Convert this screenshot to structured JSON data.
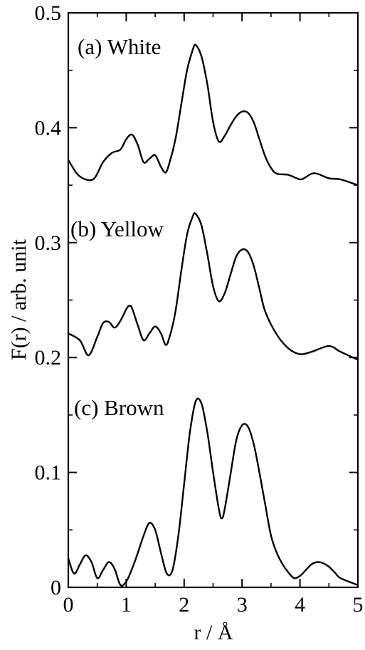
{
  "chart_data": {
    "type": "line",
    "xlabel": "r / Å",
    "ylabel": "F(r) / arb. unit",
    "xlim": [
      0,
      5
    ],
    "ylim": [
      0,
      0.5
    ],
    "x_ticks": [
      "0",
      "1",
      "2",
      "3",
      "4",
      "5"
    ],
    "y_ticks": [
      "0",
      "0.1",
      "0.2",
      "0.3",
      "0.4",
      "0.5"
    ],
    "grid": false,
    "legend": "none",
    "annotations": [
      {
        "text": "(a) White",
        "series": "White"
      },
      {
        "text": "(b) Yellow",
        "series": "Yellow"
      },
      {
        "text": "(c) Brown",
        "series": "Brown"
      }
    ],
    "series": [
      {
        "name": "White",
        "x": [
          0,
          0.15,
          0.3,
          0.45,
          0.6,
          0.75,
          0.9,
          1.0,
          1.1,
          1.2,
          1.3,
          1.4,
          1.5,
          1.6,
          1.68,
          1.75,
          1.85,
          1.95,
          2.05,
          2.15,
          2.2,
          2.3,
          2.4,
          2.5,
          2.6,
          2.7,
          2.8,
          2.9,
          3.0,
          3.1,
          3.2,
          3.3,
          3.4,
          3.5,
          3.6,
          3.8,
          4.0,
          4.1,
          4.2,
          4.3,
          4.5,
          4.7,
          5.0
        ],
        "y": [
          0.372,
          0.36,
          0.355,
          0.356,
          0.37,
          0.378,
          0.381,
          0.39,
          0.394,
          0.385,
          0.37,
          0.373,
          0.376,
          0.366,
          0.361,
          0.37,
          0.39,
          0.42,
          0.45,
          0.468,
          0.472,
          0.462,
          0.438,
          0.405,
          0.388,
          0.393,
          0.402,
          0.41,
          0.414,
          0.413,
          0.405,
          0.39,
          0.375,
          0.365,
          0.36,
          0.359,
          0.355,
          0.357,
          0.36,
          0.36,
          0.356,
          0.355,
          0.35
        ]
      },
      {
        "name": "Yellow",
        "x": [
          0,
          0.2,
          0.35,
          0.5,
          0.6,
          0.7,
          0.8,
          0.9,
          1.0,
          1.05,
          1.1,
          1.2,
          1.3,
          1.4,
          1.5,
          1.6,
          1.68,
          1.75,
          1.85,
          1.95,
          2.05,
          2.15,
          2.2,
          2.3,
          2.4,
          2.5,
          2.6,
          2.7,
          2.8,
          2.9,
          3.0,
          3.1,
          3.2,
          3.3,
          3.4,
          3.6,
          3.8,
          4.0,
          4.2,
          4.5,
          4.7,
          5.0
        ],
        "y": [
          0.221,
          0.215,
          0.202,
          0.218,
          0.23,
          0.231,
          0.226,
          0.232,
          0.242,
          0.245,
          0.243,
          0.228,
          0.215,
          0.221,
          0.227,
          0.221,
          0.211,
          0.218,
          0.24,
          0.275,
          0.307,
          0.323,
          0.325,
          0.315,
          0.29,
          0.262,
          0.249,
          0.256,
          0.272,
          0.288,
          0.294,
          0.292,
          0.28,
          0.26,
          0.24,
          0.22,
          0.208,
          0.203,
          0.205,
          0.21,
          0.205,
          0.198
        ]
      },
      {
        "name": "Brown",
        "x": [
          0,
          0.1,
          0.2,
          0.3,
          0.4,
          0.5,
          0.6,
          0.7,
          0.8,
          0.9,
          1.0,
          1.1,
          1.2,
          1.3,
          1.4,
          1.5,
          1.6,
          1.7,
          1.8,
          1.9,
          2.0,
          2.1,
          2.2,
          2.3,
          2.4,
          2.5,
          2.6,
          2.65,
          2.7,
          2.8,
          2.9,
          3.0,
          3.1,
          3.2,
          3.3,
          3.4,
          3.5,
          3.6,
          3.7,
          3.8,
          3.9,
          4.0,
          4.1,
          4.2,
          4.3,
          4.4,
          4.5,
          4.6,
          4.7,
          5.0
        ],
        "y": [
          0.025,
          0.012,
          0.02,
          0.028,
          0.022,
          0.008,
          0.015,
          0.022,
          0.016,
          0.002,
          0.005,
          0.016,
          0.03,
          0.045,
          0.056,
          0.05,
          0.03,
          0.012,
          0.015,
          0.045,
          0.09,
          0.135,
          0.162,
          0.16,
          0.135,
          0.1,
          0.068,
          0.06,
          0.068,
          0.098,
          0.128,
          0.141,
          0.14,
          0.125,
          0.1,
          0.072,
          0.045,
          0.03,
          0.02,
          0.013,
          0.008,
          0.01,
          0.015,
          0.02,
          0.022,
          0.021,
          0.018,
          0.013,
          0.008,
          0.002
        ]
      }
    ]
  }
}
